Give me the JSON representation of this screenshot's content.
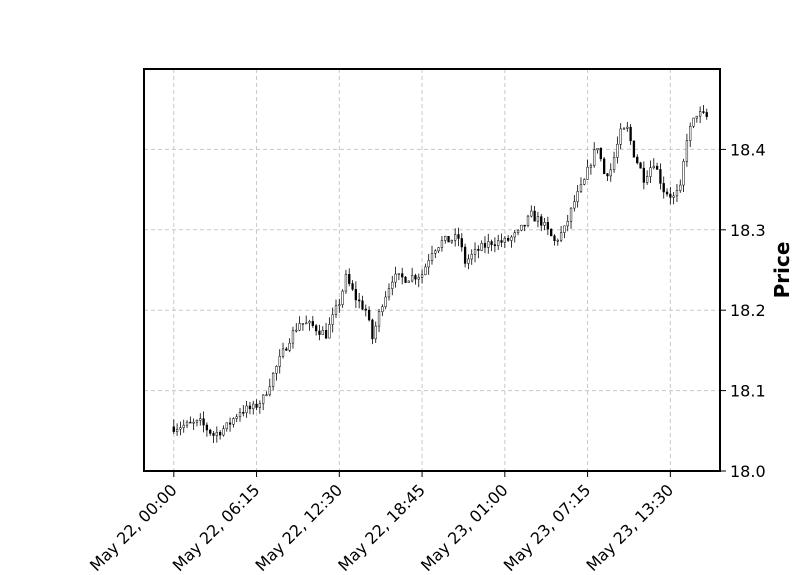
{
  "chart_data": {
    "type": "candlestick",
    "title": "",
    "xlabel": "",
    "ylabel": "Price",
    "y_axis_side": "right",
    "ylim": [
      18.0,
      18.5
    ],
    "y_ticks": [
      18.0,
      18.1,
      18.2,
      18.3,
      18.4
    ],
    "y_tick_labels": [
      "18.0",
      "18.1",
      "18.2",
      "18.3",
      "18.4"
    ],
    "x_tick_labels": [
      "May 22, 00:00",
      "May 22, 06:15",
      "May 22, 12:30",
      "May 22, 18:45",
      "May 23, 01:00",
      "May 23, 07:15",
      "May 23, 13:30"
    ],
    "x_range": [
      "2024-05-21T21:45",
      "2024-05-23T17:15"
    ],
    "x_ticks": [
      "2024-05-22T00:00",
      "2024-05-22T06:15",
      "2024-05-22T12:30",
      "2024-05-22T18:45",
      "2024-05-23T01:00",
      "2024-05-23T07:15",
      "2024-05-23T13:30"
    ],
    "grid": true,
    "candle_color": "#000000",
    "candle_style": "hollow-up / filled-down, black",
    "interval_minutes": 15,
    "close_path": [
      [
        "2024-05-22T00:00",
        18.055
      ],
      [
        "2024-05-22T01:00",
        18.057
      ],
      [
        "2024-05-22T02:00",
        18.06
      ],
      [
        "2024-05-22T03:00",
        18.045
      ],
      [
        "2024-05-22T04:00",
        18.055
      ],
      [
        "2024-05-22T05:00",
        18.075
      ],
      [
        "2024-05-22T06:00",
        18.078
      ],
      [
        "2024-05-22T06:45",
        18.09
      ],
      [
        "2024-05-22T07:30",
        18.12
      ],
      [
        "2024-05-22T08:45",
        18.165
      ],
      [
        "2024-05-22T09:30",
        18.185
      ],
      [
        "2024-05-22T10:30",
        18.18
      ],
      [
        "2024-05-22T11:30",
        18.17
      ],
      [
        "2024-05-22T12:30",
        18.21
      ],
      [
        "2024-05-22T13:00",
        18.24
      ],
      [
        "2024-05-22T13:45",
        18.215
      ],
      [
        "2024-05-22T14:30",
        18.2
      ],
      [
        "2024-05-22T15:00",
        18.165
      ],
      [
        "2024-05-22T15:45",
        18.21
      ],
      [
        "2024-05-22T16:30",
        18.24
      ],
      [
        "2024-05-22T17:30",
        18.24
      ],
      [
        "2024-05-22T18:45",
        18.245
      ],
      [
        "2024-05-22T19:30",
        18.275
      ],
      [
        "2024-05-22T20:15",
        18.285
      ],
      [
        "2024-05-22T21:30",
        18.29
      ],
      [
        "2024-05-22T22:00",
        18.26
      ],
      [
        "2024-05-22T23:00",
        18.275
      ],
      [
        "2024-05-23T00:00",
        18.285
      ],
      [
        "2024-05-23T01:00",
        18.285
      ],
      [
        "2024-05-23T02:00",
        18.295
      ],
      [
        "2024-05-23T03:00",
        18.318
      ],
      [
        "2024-05-23T03:45",
        18.31
      ],
      [
        "2024-05-23T04:45",
        18.285
      ],
      [
        "2024-05-23T05:30",
        18.3
      ],
      [
        "2024-05-23T06:15",
        18.335
      ],
      [
        "2024-05-23T07:00",
        18.36
      ],
      [
        "2024-05-23T07:30",
        18.385
      ],
      [
        "2024-05-23T08:00",
        18.405
      ],
      [
        "2024-05-23T08:30",
        18.37
      ],
      [
        "2024-05-23T09:00",
        18.375
      ],
      [
        "2024-05-23T09:45",
        18.42
      ],
      [
        "2024-05-23T10:15",
        18.425
      ],
      [
        "2024-05-23T10:45",
        18.395
      ],
      [
        "2024-05-23T11:30",
        18.365
      ],
      [
        "2024-05-23T12:15",
        18.385
      ],
      [
        "2024-05-23T13:00",
        18.35
      ],
      [
        "2024-05-23T13:45",
        18.34
      ],
      [
        "2024-05-23T14:15",
        18.35
      ],
      [
        "2024-05-23T14:45",
        18.415
      ],
      [
        "2024-05-23T15:30",
        18.445
      ],
      [
        "2024-05-23T16:15",
        18.44
      ]
    ]
  }
}
